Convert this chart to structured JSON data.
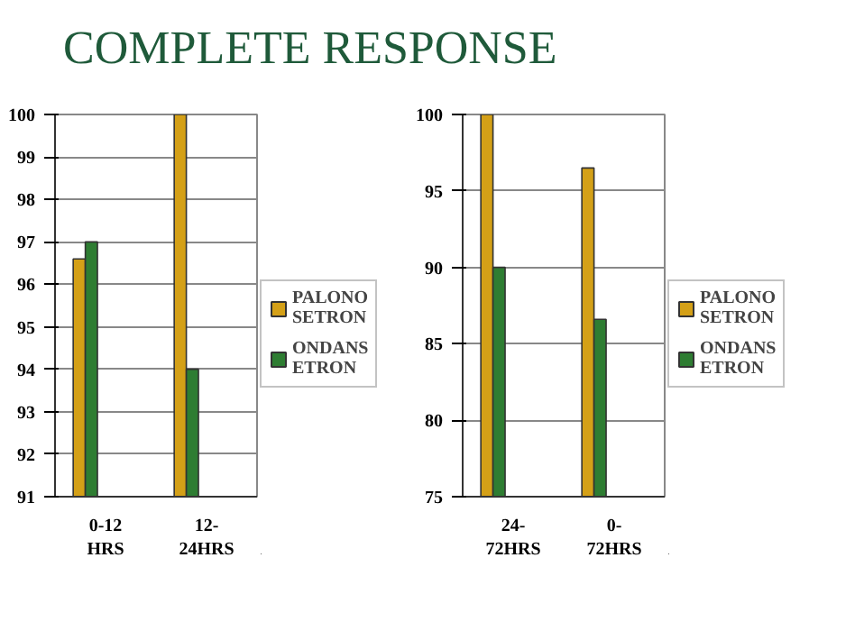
{
  "chart_data": [
    {
      "type": "bar",
      "title": "COMPLETE RESPONSE",
      "categories": [
        "0-12 HRS",
        "12- 24HRS"
      ],
      "ylim": [
        91,
        100
      ],
      "yticks": [
        91,
        92,
        93,
        94,
        95,
        96,
        97,
        98,
        99,
        100
      ],
      "grid": "y",
      "legend": "right",
      "series": [
        {
          "name": "PALONO SETRON",
          "color": "#d4a017",
          "values": [
            96.6,
            100
          ]
        },
        {
          "name": "ONDANS ETRON",
          "color": "#2e7d32",
          "values": [
            97,
            94
          ]
        }
      ]
    },
    {
      "type": "bar",
      "categories": [
        "24- 72HRS",
        "0- 72HRS"
      ],
      "ylim": [
        75,
        100
      ],
      "yticks": [
        75,
        80,
        85,
        90,
        95,
        100
      ],
      "grid": "y",
      "legend": "right",
      "series": [
        {
          "name": "PALONO SETRON",
          "color": "#d4a017",
          "values": [
            100,
            96.5
          ]
        },
        {
          "name": "ONDANS ETRON",
          "color": "#2e7d32",
          "values": [
            90,
            86.6
          ]
        }
      ]
    }
  ]
}
